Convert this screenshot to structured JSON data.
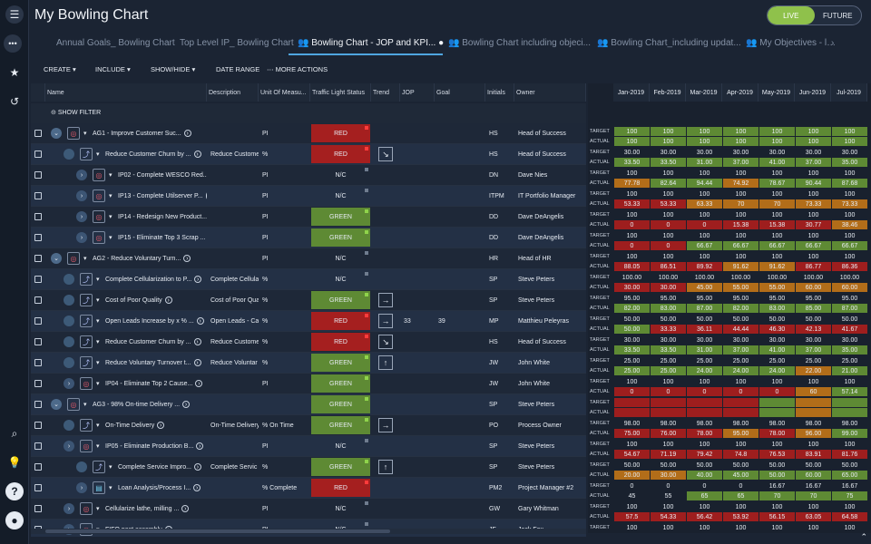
{
  "app": {
    "title": "My Bowling Chart",
    "live": "LIVE",
    "future": "FUTURE"
  },
  "tabs": [
    {
      "label": "Annual Goals_ Bowling Chart",
      "icon": ""
    },
    {
      "label": "Top Level IP_ Bowling Chart",
      "icon": ""
    },
    {
      "label": "Bowling Chart - JOP and KPI... ●",
      "icon": "people-icon"
    },
    {
      "label": "Bowling Chart including objeci...",
      "icon": "people-icon"
    },
    {
      "label": "Bowling Chart_including updat...",
      "icon": "people-icon"
    },
    {
      "label": "My Objectives - l…",
      "icon": "people-icon"
    }
  ],
  "toolbar": {
    "create": "CREATE",
    "include": "INCLUDE",
    "show_hide": "SHOW/HIDE",
    "date_range": "DATE RANGE",
    "more_actions": "MORE ACTIONS"
  },
  "columns": {
    "name": "Name",
    "description": "Description",
    "unit": "Unit Of Measu...",
    "tls": "Traffic Light Status",
    "trend": "Trend",
    "jop": "JOP",
    "goal": "Goal",
    "initials": "Initials",
    "owner": "Owner"
  },
  "filter_label": "SHOW FILTER",
  "months": [
    "Jan-2019",
    "Feb-2019",
    "Mar-2019",
    "Apr-2019",
    "May-2019",
    "Jun-2019",
    "Jul-2019"
  ],
  "labels": {
    "target": "TARGET",
    "actual": "ACTUAL"
  },
  "rows": [
    {
      "name": "AG1 - Improve Customer Suc...",
      "desc": "",
      "unit": "PI",
      "status": "RED",
      "trend": "",
      "jop": "",
      "goal": "",
      "initials": "HS",
      "owner": "Head of Success",
      "target": [
        "100",
        "100",
        "100",
        "100",
        "100",
        "100",
        "100"
      ],
      "tc": [
        "G",
        "G",
        "G",
        "G",
        "G",
        "G",
        "G"
      ],
      "actual": [
        "100",
        "100",
        "100",
        "100",
        "100",
        "100",
        "100"
      ],
      "ac": [
        "G",
        "G",
        "G",
        "G",
        "G",
        "G",
        "G"
      ]
    },
    {
      "name": "Reduce Customer Churn by ...",
      "desc": "Reduce Custome",
      "unit": "%",
      "status": "RED",
      "trend": "↘",
      "jop": "",
      "goal": "",
      "initials": "HS",
      "owner": "Head of Success",
      "target": [
        "30.00",
        "30.00",
        "30.00",
        "30.00",
        "30.00",
        "30.00",
        "30.00"
      ],
      "tc": [
        "t",
        "t",
        "t",
        "t",
        "t",
        "t",
        "t"
      ],
      "actual": [
        "33.50",
        "33.50",
        "31.00",
        "37.00",
        "41.00",
        "37.00",
        "35.00"
      ],
      "ac": [
        "G",
        "G",
        "G",
        "G",
        "G",
        "G",
        "G"
      ]
    },
    {
      "name": "IP02 - Complete WESCO Red...",
      "desc": "",
      "unit": "PI",
      "status": "N/C",
      "trend": "",
      "jop": "",
      "goal": "",
      "initials": "DN",
      "owner": "Dave Nies",
      "target": [
        "100",
        "100",
        "100",
        "100",
        "100",
        "100",
        "100"
      ],
      "tc": [
        "t",
        "t",
        "t",
        "t",
        "t",
        "t",
        "t"
      ],
      "actual": [
        "77.78",
        "82.64",
        "94.44",
        "74.92",
        "78.67",
        "90.44",
        "87.68"
      ],
      "ac": [
        "O",
        "G",
        "G",
        "O",
        "G",
        "G",
        "G"
      ]
    },
    {
      "name": "IP13 - Complete Utilserver P...",
      "desc": "",
      "unit": "PI",
      "status": "N/C",
      "trend": "",
      "jop": "",
      "goal": "",
      "initials": "ITPM",
      "owner": "IT Portfolio Manager",
      "target": [
        "100",
        "100",
        "100",
        "100",
        "100",
        "100",
        "100"
      ],
      "tc": [
        "t",
        "t",
        "t",
        "t",
        "t",
        "t",
        "t"
      ],
      "actual": [
        "53.33",
        "53.33",
        "63.33",
        "70",
        "70",
        "73.33",
        "73.33"
      ],
      "ac": [
        "R",
        "R",
        "O",
        "O",
        "O",
        "O",
        "O"
      ]
    },
    {
      "name": "IP14 - Redesign New Product...",
      "desc": "",
      "unit": "PI",
      "status": "GREEN",
      "trend": "",
      "jop": "",
      "goal": "",
      "initials": "DD",
      "owner": "Dave DeAngelis",
      "target": [
        "100",
        "100",
        "100",
        "100",
        "100",
        "100",
        "100"
      ],
      "tc": [
        "t",
        "t",
        "t",
        "t",
        "t",
        "t",
        "t"
      ],
      "actual": [
        "0",
        "0",
        "0",
        "15.38",
        "15.38",
        "30.77",
        "38.46"
      ],
      "ac": [
        "R",
        "R",
        "R",
        "R",
        "R",
        "R",
        "O"
      ]
    },
    {
      "name": "IP15 - Eliminate Top 3 Scrap ...",
      "desc": "",
      "unit": "PI",
      "status": "GREEN",
      "trend": "",
      "jop": "",
      "goal": "",
      "initials": "DD",
      "owner": "Dave DeAngelis",
      "target": [
        "100",
        "100",
        "100",
        "100",
        "100",
        "100",
        "100"
      ],
      "tc": [
        "t",
        "t",
        "t",
        "t",
        "t",
        "t",
        "t"
      ],
      "actual": [
        "0",
        "0",
        "66.67",
        "66.67",
        "66.67",
        "66.67",
        "66.67"
      ],
      "ac": [
        "R",
        "R",
        "G",
        "G",
        "G",
        "G",
        "G"
      ]
    },
    {
      "name": "AG2 - Reduce Voluntary Turn...",
      "desc": "",
      "unit": "PI",
      "status": "N/C",
      "trend": "",
      "jop": "",
      "goal": "",
      "initials": "HR",
      "owner": "Head of HR",
      "target": [
        "100",
        "100",
        "100",
        "100",
        "100",
        "100",
        "100"
      ],
      "tc": [
        "t",
        "t",
        "t",
        "t",
        "t",
        "t",
        "t"
      ],
      "actual": [
        "88.05",
        "86.51",
        "89.92",
        "91.62",
        "91.62",
        "86.77",
        "86.36"
      ],
      "ac": [
        "R",
        "R",
        "R",
        "O",
        "O",
        "R",
        "R"
      ]
    },
    {
      "name": "Complete Cellularization to P...",
      "desc": "Complete Cellula",
      "unit": "%",
      "status": "N/C",
      "trend": "",
      "jop": "",
      "goal": "",
      "initials": "SP",
      "owner": "Steve Peters",
      "target": [
        "100.00",
        "100.00",
        "100.00",
        "100.00",
        "100.00",
        "100.00",
        "100.00"
      ],
      "tc": [
        "t",
        "t",
        "t",
        "t",
        "t",
        "t",
        "t"
      ],
      "actual": [
        "30.00",
        "30.00",
        "45.00",
        "55.00",
        "55.00",
        "60.00",
        "60.00"
      ],
      "ac": [
        "R",
        "R",
        "O",
        "O",
        "O",
        "O",
        "O"
      ]
    },
    {
      "name": "Cost of Poor Quality",
      "desc": "Cost of Poor Qua",
      "unit": "%",
      "status": "GREEN",
      "trend": "→",
      "jop": "",
      "goal": "",
      "initials": "SP",
      "owner": "Steve Peters",
      "target": [
        "95.00",
        "95.00",
        "95.00",
        "95.00",
        "95.00",
        "95.00",
        "95.00"
      ],
      "tc": [
        "t",
        "t",
        "t",
        "t",
        "t",
        "t",
        "t"
      ],
      "actual": [
        "82.00",
        "83.00",
        "87.00",
        "82.00",
        "83.00",
        "85.00",
        "87.00"
      ],
      "ac": [
        "G",
        "G",
        "G",
        "G",
        "G",
        "G",
        "G"
      ]
    },
    {
      "name": "Open Leads Increase by x % ...",
      "desc": "Open Leads - Cal",
      "unit": "%",
      "status": "RED",
      "trend": "→",
      "jop": "33",
      "goal": "39",
      "initials": "MP",
      "owner": "Matthieu Peleyras",
      "target": [
        "50.00",
        "50.00",
        "50.00",
        "50.00",
        "50.00",
        "50.00",
        "50.00"
      ],
      "tc": [
        "t",
        "t",
        "t",
        "t",
        "t",
        "t",
        "t"
      ],
      "actual": [
        "50.00",
        "33.33",
        "36.11",
        "44.44",
        "46.30",
        "42.13",
        "41.67"
      ],
      "ac": [
        "G",
        "R",
        "R",
        "R",
        "R",
        "R",
        "R"
      ]
    },
    {
      "name": "Reduce Customer Churn by ...",
      "desc": "Reduce Custome",
      "unit": "%",
      "status": "RED",
      "trend": "↘",
      "jop": "",
      "goal": "",
      "initials": "HS",
      "owner": "Head of Success",
      "target": [
        "30.00",
        "30.00",
        "30.00",
        "30.00",
        "30.00",
        "30.00",
        "30.00"
      ],
      "tc": [
        "t",
        "t",
        "t",
        "t",
        "t",
        "t",
        "t"
      ],
      "actual": [
        "33.50",
        "33.50",
        "31.00",
        "37.00",
        "41.00",
        "37.00",
        "35.00"
      ],
      "ac": [
        "G",
        "G",
        "G",
        "G",
        "G",
        "G",
        "G"
      ]
    },
    {
      "name": "Reduce Voluntary Turnover t...",
      "desc": "Reduce Voluntar",
      "unit": "%",
      "status": "GREEN",
      "trend": "↑",
      "jop": "",
      "goal": "",
      "initials": "JW",
      "owner": "John White",
      "target": [
        "25.00",
        "25.00",
        "25.00",
        "25.00",
        "25.00",
        "25.00",
        "25.00"
      ],
      "tc": [
        "t",
        "t",
        "t",
        "t",
        "t",
        "t",
        "t"
      ],
      "actual": [
        "25.00",
        "25.00",
        "24.00",
        "24.00",
        "24.00",
        "22.00",
        "21.00"
      ],
      "ac": [
        "G",
        "G",
        "G",
        "G",
        "G",
        "O",
        "G"
      ]
    },
    {
      "name": "IP04 - Eliminate Top 2 Cause...",
      "desc": "",
      "unit": "PI",
      "status": "GREEN",
      "trend": "",
      "jop": "",
      "goal": "",
      "initials": "JW",
      "owner": "John White",
      "target": [
        "100",
        "100",
        "100",
        "100",
        "100",
        "100",
        "100"
      ],
      "tc": [
        "t",
        "t",
        "t",
        "t",
        "t",
        "t",
        "t"
      ],
      "actual": [
        "0",
        "0",
        "0",
        "0",
        "0",
        "60",
        "57.14"
      ],
      "ac": [
        "R",
        "R",
        "R",
        "R",
        "R",
        "O",
        "G"
      ]
    },
    {
      "name": "AG3 - 98% On-time Delivery ...",
      "desc": "",
      "unit": "",
      "status": "GREEN",
      "trend": "",
      "jop": "",
      "goal": "",
      "initials": "SP",
      "owner": "Steve Peters",
      "target": [
        "",
        "",
        "",
        "",
        "",
        "",
        ""
      ],
      "tc": [
        "R",
        "R",
        "R",
        "R",
        "G",
        "O",
        "G"
      ],
      "actual": [
        "",
        "",
        "",
        "",
        "",
        "",
        ""
      ],
      "ac": [
        "R",
        "R",
        "R",
        "R",
        "G",
        "O",
        "G"
      ]
    },
    {
      "name": "On-Time Delivery",
      "desc": "On-Time Delivery",
      "unit": "% On Time",
      "status": "GREEN",
      "trend": "→",
      "jop": "",
      "goal": "",
      "initials": "PO",
      "owner": "Process Owner",
      "target": [
        "98.00",
        "98.00",
        "98.00",
        "98.00",
        "98.00",
        "98.00",
        "98.00"
      ],
      "tc": [
        "t",
        "t",
        "t",
        "t",
        "t",
        "t",
        "t"
      ],
      "actual": [
        "75.00",
        "76.00",
        "78.00",
        "95.00",
        "78.00",
        "96.00",
        "99.00"
      ],
      "ac": [
        "R",
        "R",
        "R",
        "O",
        "R",
        "O",
        "G"
      ]
    },
    {
      "name": "IP05 - Eliminate Production B...",
      "desc": "",
      "unit": "PI",
      "status": "N/C",
      "trend": "",
      "jop": "",
      "goal": "",
      "initials": "SP",
      "owner": "Steve Peters",
      "target": [
        "100",
        "100",
        "100",
        "100",
        "100",
        "100",
        "100"
      ],
      "tc": [
        "t",
        "t",
        "t",
        "t",
        "t",
        "t",
        "t"
      ],
      "actual": [
        "54.67",
        "71.19",
        "79.42",
        "74.8",
        "76.53",
        "83.91",
        "81.76"
      ],
      "ac": [
        "R",
        "R",
        "R",
        "R",
        "R",
        "R",
        "R"
      ]
    },
    {
      "name": "Complete Service Impro...",
      "desc": "Complete Servic",
      "unit": "%",
      "status": "GREEN",
      "trend": "↑",
      "jop": "",
      "goal": "",
      "initials": "SP",
      "owner": "Steve Peters",
      "target": [
        "50.00",
        "50.00",
        "50.00",
        "50.00",
        "50.00",
        "50.00",
        "50.00"
      ],
      "tc": [
        "t",
        "t",
        "t",
        "t",
        "t",
        "t",
        "t"
      ],
      "actual": [
        "20.00",
        "30.00",
        "40.00",
        "45.00",
        "50.00",
        "60.00",
        "65.00"
      ],
      "ac": [
        "O",
        "O",
        "G",
        "G",
        "G",
        "G",
        "G"
      ]
    },
    {
      "name": "Loan Analysis/Process I...",
      "desc": "",
      "unit": "% Complete",
      "status": "RED",
      "trend": "",
      "jop": "",
      "goal": "",
      "initials": "PM2",
      "owner": "Project Manager #2",
      "target": [
        "0",
        "0",
        "0",
        "0",
        "16.67",
        "16.67",
        "16.67"
      ],
      "tc": [
        "t",
        "t",
        "t",
        "t",
        "t",
        "t",
        "t"
      ],
      "actual": [
        "45",
        "55",
        "65",
        "65",
        "70",
        "70",
        "75"
      ],
      "ac": [
        "t",
        "t",
        "G",
        "G",
        "G",
        "G",
        "G"
      ]
    },
    {
      "name": "Cellularize lathe, milling ...",
      "desc": "",
      "unit": "PI",
      "status": "N/C",
      "trend": "",
      "jop": "",
      "goal": "",
      "initials": "GW",
      "owner": "Gary Whitman",
      "target": [
        "100",
        "100",
        "100",
        "100",
        "100",
        "100",
        "100"
      ],
      "tc": [
        "t",
        "t",
        "t",
        "t",
        "t",
        "t",
        "t"
      ],
      "actual": [
        "57.5",
        "54.33",
        "56.42",
        "53.92",
        "56.15",
        "63.05",
        "64.58"
      ],
      "ac": [
        "R",
        "R",
        "R",
        "R",
        "R",
        "R",
        "R"
      ]
    },
    {
      "name": "FIFO post assembly",
      "desc": "",
      "unit": "PI",
      "status": "N/C",
      "trend": "",
      "jop": "",
      "goal": "",
      "initials": "JF",
      "owner": "Jack Fox",
      "target": [
        "100",
        "100",
        "100",
        "100",
        "100",
        "100",
        "100"
      ],
      "tc": [
        "t",
        "t",
        "t",
        "t",
        "t",
        "t",
        "t"
      ],
      "actual": [
        "",
        "",
        "",
        "",
        "",
        "",
        ""
      ],
      "ac": [
        "t",
        "t",
        "t",
        "t",
        "t",
        "t",
        "t"
      ]
    }
  ]
}
